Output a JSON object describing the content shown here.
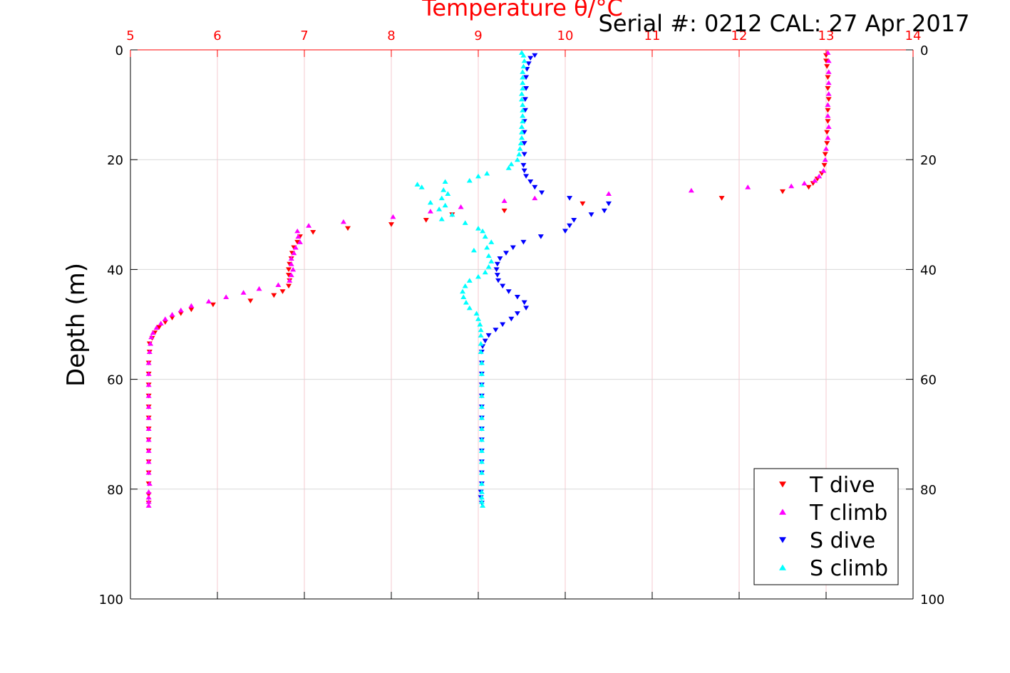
{
  "chart_data": {
    "type": "scatter",
    "title": "Temperature θ/°C",
    "subtitle": "Serial #: 0212  CAL: 27 Apr 2017",
    "xlabel": "Temperature θ/°C",
    "ylabel": "Depth (m)",
    "xlim": [
      5,
      14
    ],
    "ylim": [
      0,
      100
    ],
    "y_reversed": true,
    "x_axis_position": "top",
    "xticks": [
      "5",
      "6",
      "7",
      "8",
      "9",
      "10",
      "11",
      "12",
      "13",
      "14"
    ],
    "yticks": [
      "0",
      "20",
      "40",
      "60",
      "80",
      "100"
    ],
    "grid": true,
    "legend_position": "bottom-right",
    "colors": {
      "title": "#ff0000",
      "x_ticks": "#ff0000",
      "t_grid": "#f4c8cf",
      "d_grid": "#d8d8d8",
      "axis": "#000000"
    },
    "series": [
      {
        "name": "T dive",
        "marker": "triangle-down",
        "color": "#ff0000",
        "points": [
          [
            13.0,
            1
          ],
          [
            13.0,
            2
          ],
          [
            13.01,
            3
          ],
          [
            13.02,
            5
          ],
          [
            13.02,
            7
          ],
          [
            13.03,
            9
          ],
          [
            13.02,
            11
          ],
          [
            13.02,
            13
          ],
          [
            13.01,
            15
          ],
          [
            13.01,
            17
          ],
          [
            12.99,
            19
          ],
          [
            12.98,
            21
          ],
          [
            12.95,
            22.5
          ],
          [
            12.9,
            23.5
          ],
          [
            12.85,
            24.3
          ],
          [
            12.8,
            25
          ],
          [
            12.5,
            25.8
          ],
          [
            11.8,
            27
          ],
          [
            10.2,
            28
          ],
          [
            9.3,
            29.3
          ],
          [
            8.7,
            30
          ],
          [
            8.4,
            31
          ],
          [
            8.0,
            31.8
          ],
          [
            7.5,
            32.5
          ],
          [
            7.1,
            33.2
          ],
          [
            6.95,
            34
          ],
          [
            6.92,
            35
          ],
          [
            6.88,
            36
          ],
          [
            6.86,
            37
          ],
          [
            6.85,
            38
          ],
          [
            6.83,
            39
          ],
          [
            6.82,
            40
          ],
          [
            6.82,
            41
          ],
          [
            6.83,
            42
          ],
          [
            6.82,
            43
          ],
          [
            6.75,
            44
          ],
          [
            6.65,
            44.7
          ],
          [
            6.38,
            45.7
          ],
          [
            5.95,
            46.4
          ],
          [
            5.7,
            47.3
          ],
          [
            5.58,
            48
          ],
          [
            5.48,
            48.8
          ],
          [
            5.4,
            49.6
          ],
          [
            5.33,
            50.5
          ],
          [
            5.28,
            51.5
          ],
          [
            5.25,
            52.5
          ],
          [
            5.22,
            53.5
          ],
          [
            5.22,
            55
          ],
          [
            5.21,
            57
          ],
          [
            5.21,
            59
          ],
          [
            5.21,
            61
          ],
          [
            5.21,
            63
          ],
          [
            5.21,
            65
          ],
          [
            5.21,
            67
          ],
          [
            5.21,
            69
          ],
          [
            5.21,
            71
          ],
          [
            5.21,
            73
          ],
          [
            5.21,
            75
          ],
          [
            5.21,
            77
          ],
          [
            5.21,
            79
          ],
          [
            5.21,
            81
          ],
          [
            5.21,
            82.5
          ]
        ]
      },
      {
        "name": "T climb",
        "marker": "triangle-up",
        "color": "#ff00ff",
        "points": [
          [
            13.02,
            0.5
          ],
          [
            13.03,
            2
          ],
          [
            13.03,
            4
          ],
          [
            13.03,
            6
          ],
          [
            13.03,
            8
          ],
          [
            13.02,
            10
          ],
          [
            13.02,
            12
          ],
          [
            13.03,
            14
          ],
          [
            13.02,
            16
          ],
          [
            13.0,
            18
          ],
          [
            12.99,
            20
          ],
          [
            12.97,
            22
          ],
          [
            12.92,
            23
          ],
          [
            12.87,
            23.8
          ],
          [
            12.75,
            24.3
          ],
          [
            12.6,
            24.8
          ],
          [
            12.1,
            25
          ],
          [
            11.45,
            25.6
          ],
          [
            10.5,
            26.2
          ],
          [
            9.65,
            27
          ],
          [
            9.3,
            27.5
          ],
          [
            8.8,
            28.6
          ],
          [
            8.45,
            29.4
          ],
          [
            8.02,
            30.4
          ],
          [
            7.45,
            31.3
          ],
          [
            7.05,
            32
          ],
          [
            6.92,
            33
          ],
          [
            6.93,
            34
          ],
          [
            6.95,
            35
          ],
          [
            6.9,
            36
          ],
          [
            6.88,
            37
          ],
          [
            6.85,
            38
          ],
          [
            6.85,
            39
          ],
          [
            6.87,
            40
          ],
          [
            6.85,
            41
          ],
          [
            6.83,
            42
          ],
          [
            6.7,
            42.8
          ],
          [
            6.48,
            43.5
          ],
          [
            6.3,
            44.2
          ],
          [
            6.1,
            45
          ],
          [
            5.9,
            45.8
          ],
          [
            5.7,
            46.6
          ],
          [
            5.58,
            47.4
          ],
          [
            5.48,
            48.2
          ],
          [
            5.4,
            49
          ],
          [
            5.35,
            49.8
          ],
          [
            5.3,
            50.6
          ],
          [
            5.26,
            51.5
          ],
          [
            5.24,
            52.3
          ],
          [
            5.23,
            53.5
          ],
          [
            5.22,
            55
          ],
          [
            5.21,
            57
          ],
          [
            5.21,
            59
          ],
          [
            5.21,
            61
          ],
          [
            5.21,
            63
          ],
          [
            5.21,
            65
          ],
          [
            5.21,
            67
          ],
          [
            5.21,
            69
          ],
          [
            5.21,
            71
          ],
          [
            5.21,
            73
          ],
          [
            5.21,
            75
          ],
          [
            5.21,
            77
          ],
          [
            5.22,
            79
          ],
          [
            5.21,
            80.5
          ],
          [
            5.21,
            81.5
          ],
          [
            5.21,
            82.3
          ],
          [
            5.21,
            83
          ]
        ]
      },
      {
        "name": "S dive",
        "marker": "triangle-down",
        "color": "#0000ff",
        "points": [
          [
            9.65,
            1
          ],
          [
            9.6,
            1.5
          ],
          [
            9.58,
            2.5
          ],
          [
            9.56,
            3.5
          ],
          [
            9.55,
            5
          ],
          [
            9.55,
            7
          ],
          [
            9.54,
            9
          ],
          [
            9.54,
            11
          ],
          [
            9.53,
            13
          ],
          [
            9.53,
            15
          ],
          [
            9.53,
            17
          ],
          [
            9.53,
            19
          ],
          [
            9.52,
            21
          ],
          [
            9.53,
            22
          ],
          [
            9.55,
            23
          ],
          [
            9.6,
            24
          ],
          [
            9.65,
            25
          ],
          [
            9.73,
            26
          ],
          [
            10.05,
            27
          ],
          [
            10.5,
            28
          ],
          [
            10.45,
            29.3
          ],
          [
            10.3,
            30
          ],
          [
            10.1,
            31
          ],
          [
            10.05,
            32
          ],
          [
            10.0,
            33
          ],
          [
            9.72,
            34
          ],
          [
            9.52,
            35
          ],
          [
            9.4,
            36
          ],
          [
            9.32,
            37
          ],
          [
            9.25,
            38
          ],
          [
            9.22,
            39
          ],
          [
            9.21,
            40
          ],
          [
            9.22,
            41
          ],
          [
            9.23,
            42
          ],
          [
            9.28,
            43
          ],
          [
            9.35,
            44
          ],
          [
            9.45,
            45
          ],
          [
            9.53,
            46
          ],
          [
            9.55,
            47
          ],
          [
            9.45,
            48
          ],
          [
            9.38,
            49
          ],
          [
            9.28,
            50
          ],
          [
            9.2,
            51
          ],
          [
            9.12,
            52
          ],
          [
            9.08,
            53
          ],
          [
            9.05,
            54
          ],
          [
            9.04,
            55
          ],
          [
            9.04,
            57
          ],
          [
            9.04,
            59
          ],
          [
            9.04,
            61
          ],
          [
            9.04,
            63
          ],
          [
            9.04,
            65
          ],
          [
            9.04,
            67
          ],
          [
            9.04,
            69
          ],
          [
            9.04,
            71
          ],
          [
            9.04,
            73
          ],
          [
            9.04,
            75
          ],
          [
            9.04,
            77
          ],
          [
            9.04,
            79
          ],
          [
            9.03,
            80.5
          ],
          [
            9.03,
            81.5
          ],
          [
            9.04,
            82.5
          ]
        ]
      },
      {
        "name": "S climb",
        "marker": "triangle-up",
        "color": "#00ffff",
        "points": [
          [
            9.5,
            0.5
          ],
          [
            9.52,
            1
          ],
          [
            9.53,
            2
          ],
          [
            9.52,
            3
          ],
          [
            9.51,
            4
          ],
          [
            9.51,
            5
          ],
          [
            9.51,
            6
          ],
          [
            9.51,
            7
          ],
          [
            9.5,
            8
          ],
          [
            9.5,
            9
          ],
          [
            9.51,
            10
          ],
          [
            9.51,
            11
          ],
          [
            9.51,
            12
          ],
          [
            9.51,
            13
          ],
          [
            9.5,
            14
          ],
          [
            9.5,
            15
          ],
          [
            9.5,
            16
          ],
          [
            9.49,
            17
          ],
          [
            9.48,
            18
          ],
          [
            9.47,
            19
          ],
          [
            9.45,
            20
          ],
          [
            9.38,
            20.8
          ],
          [
            9.35,
            21.5
          ],
          [
            9.1,
            22.5
          ],
          [
            9.0,
            23
          ],
          [
            8.9,
            23.8
          ],
          [
            8.62,
            24
          ],
          [
            8.3,
            24.5
          ],
          [
            8.35,
            25
          ],
          [
            8.6,
            25.5
          ],
          [
            8.65,
            26.2
          ],
          [
            8.58,
            27
          ],
          [
            8.45,
            27.8
          ],
          [
            8.62,
            28.3
          ],
          [
            8.55,
            29
          ],
          [
            8.7,
            30
          ],
          [
            8.58,
            30.8
          ],
          [
            8.85,
            31.5
          ],
          [
            9.0,
            32.5
          ],
          [
            9.05,
            33
          ],
          [
            9.08,
            34
          ],
          [
            9.15,
            35
          ],
          [
            9.1,
            36
          ],
          [
            8.95,
            36.5
          ],
          [
            9.12,
            37.5
          ],
          [
            9.15,
            38.5
          ],
          [
            9.12,
            39.5
          ],
          [
            9.08,
            40.5
          ],
          [
            9.0,
            41.3
          ],
          [
            8.9,
            42
          ],
          [
            8.85,
            43
          ],
          [
            8.82,
            44
          ],
          [
            8.83,
            45
          ],
          [
            8.86,
            46
          ],
          [
            8.9,
            47
          ],
          [
            8.98,
            48
          ],
          [
            9.0,
            49
          ],
          [
            9.02,
            50
          ],
          [
            9.03,
            51
          ],
          [
            9.03,
            52
          ],
          [
            9.03,
            53.5
          ],
          [
            9.03,
            55
          ],
          [
            9.04,
            57
          ],
          [
            9.04,
            59
          ],
          [
            9.04,
            61
          ],
          [
            9.04,
            63
          ],
          [
            9.04,
            65
          ],
          [
            9.04,
            67
          ],
          [
            9.04,
            69
          ],
          [
            9.04,
            71
          ],
          [
            9.04,
            73
          ],
          [
            9.04,
            75
          ],
          [
            9.04,
            77
          ],
          [
            9.04,
            79
          ],
          [
            9.04,
            80.5
          ],
          [
            9.04,
            81.5
          ],
          [
            9.04,
            82.3
          ],
          [
            9.05,
            83
          ]
        ]
      }
    ]
  }
}
